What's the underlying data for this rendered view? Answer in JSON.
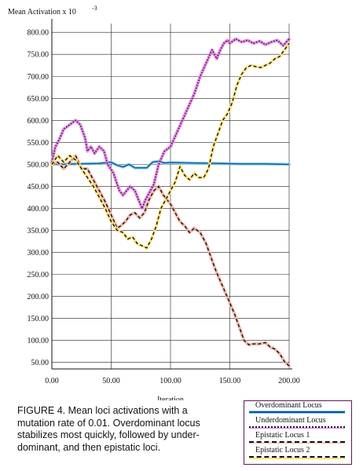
{
  "chart_data": {
    "type": "line",
    "ylabel": "Mean Activation x 10",
    "ylabel_exp": "-3",
    "xlabel": "Iteration",
    "xlim": [
      0,
      200
    ],
    "ylim": [
      35,
      820
    ],
    "x_ticks": [
      "0.00",
      "50.00",
      "100.00",
      "150.00",
      "200.00"
    ],
    "y_ticks": [
      "50.00",
      "100.00",
      "150.00",
      "200.00",
      "250.00",
      "300.00",
      "350.00",
      "400.00",
      "450.00",
      "500.00",
      "550.00",
      "600.00",
      "650.00",
      "700.00",
      "750.00",
      "800.00"
    ],
    "grid": true,
    "legend_position": "bottom-right",
    "series": [
      {
        "name": "Overdominant Locus",
        "color": "#1a4a9a",
        "highlight": "#7fd3e8",
        "dash": "solid",
        "points": [
          [
            0,
            500
          ],
          [
            40,
            502
          ],
          [
            50,
            505
          ],
          [
            55,
            498
          ],
          [
            60,
            494
          ],
          [
            65,
            500
          ],
          [
            70,
            492
          ],
          [
            80,
            492
          ],
          [
            85,
            505
          ],
          [
            90,
            507
          ],
          [
            95,
            503
          ],
          [
            100,
            504
          ],
          [
            120,
            503
          ],
          [
            140,
            502
          ],
          [
            160,
            501
          ],
          [
            180,
            501
          ],
          [
            200,
            500
          ]
        ]
      },
      {
        "name": "Underdominant Locus",
        "color": "#2a0a3a",
        "highlight": "#e07ae0",
        "dash": "dotted",
        "points": [
          [
            0,
            505
          ],
          [
            3,
            540
          ],
          [
            6,
            555
          ],
          [
            10,
            580
          ],
          [
            15,
            590
          ],
          [
            20,
            600
          ],
          [
            24,
            590
          ],
          [
            28,
            560
          ],
          [
            30,
            530
          ],
          [
            33,
            540
          ],
          [
            36,
            525
          ],
          [
            40,
            540
          ],
          [
            44,
            530
          ],
          [
            47,
            500
          ],
          [
            52,
            480
          ],
          [
            55,
            455
          ],
          [
            57,
            440
          ],
          [
            60,
            430
          ],
          [
            63,
            440
          ],
          [
            66,
            450
          ],
          [
            70,
            440
          ],
          [
            73,
            420
          ],
          [
            76,
            400
          ],
          [
            79,
            420
          ],
          [
            82,
            435
          ],
          [
            86,
            455
          ],
          [
            90,
            500
          ],
          [
            95,
            530
          ],
          [
            100,
            540
          ],
          [
            105,
            570
          ],
          [
            110,
            600
          ],
          [
            115,
            630
          ],
          [
            120,
            660
          ],
          [
            125,
            700
          ],
          [
            130,
            730
          ],
          [
            135,
            760
          ],
          [
            139,
            740
          ],
          [
            142,
            760
          ],
          [
            145,
            775
          ],
          [
            148,
            782
          ],
          [
            150,
            775
          ],
          [
            155,
            785
          ],
          [
            160,
            778
          ],
          [
            165,
            782
          ],
          [
            170,
            775
          ],
          [
            175,
            780
          ],
          [
            180,
            772
          ],
          [
            185,
            778
          ],
          [
            190,
            782
          ],
          [
            195,
            770
          ],
          [
            200,
            785
          ]
        ]
      },
      {
        "name": "Epistatic Locus 1",
        "color": "#111111",
        "highlight": "#f0b0a0",
        "dash": "dashed",
        "points": [
          [
            0,
            500
          ],
          [
            5,
            505
          ],
          [
            10,
            490
          ],
          [
            15,
            505
          ],
          [
            20,
            520
          ],
          [
            25,
            490
          ],
          [
            30,
            490
          ],
          [
            35,
            465
          ],
          [
            40,
            440
          ],
          [
            45,
            415
          ],
          [
            50,
            385
          ],
          [
            55,
            355
          ],
          [
            58,
            360
          ],
          [
            62,
            370
          ],
          [
            66,
            385
          ],
          [
            70,
            390
          ],
          [
            74,
            378
          ],
          [
            78,
            390
          ],
          [
            82,
            420
          ],
          [
            86,
            440
          ],
          [
            90,
            450
          ],
          [
            94,
            430
          ],
          [
            100,
            410
          ],
          [
            104,
            390
          ],
          [
            108,
            370
          ],
          [
            112,
            360
          ],
          [
            116,
            345
          ],
          [
            120,
            355
          ],
          [
            125,
            345
          ],
          [
            130,
            320
          ],
          [
            134,
            290
          ],
          [
            138,
            260
          ],
          [
            142,
            235
          ],
          [
            146,
            210
          ],
          [
            150,
            185
          ],
          [
            154,
            160
          ],
          [
            158,
            130
          ],
          [
            162,
            100
          ],
          [
            166,
            90
          ],
          [
            170,
            92
          ],
          [
            175,
            92
          ],
          [
            180,
            95
          ],
          [
            184,
            85
          ],
          [
            188,
            80
          ],
          [
            192,
            70
          ],
          [
            196,
            52
          ],
          [
            200,
            42
          ]
        ]
      },
      {
        "name": "Epistatic Locus 2",
        "color": "#111111",
        "highlight": "#ffe27a",
        "dash": "dashed",
        "points": [
          [
            0,
            500
          ],
          [
            5,
            520
          ],
          [
            10,
            505
          ],
          [
            15,
            520
          ],
          [
            20,
            510
          ],
          [
            25,
            490
          ],
          [
            30,
            470
          ],
          [
            35,
            450
          ],
          [
            40,
            425
          ],
          [
            45,
            400
          ],
          [
            50,
            370
          ],
          [
            55,
            350
          ],
          [
            60,
            345
          ],
          [
            64,
            330
          ],
          [
            68,
            335
          ],
          [
            72,
            320
          ],
          [
            76,
            315
          ],
          [
            80,
            310
          ],
          [
            84,
            330
          ],
          [
            88,
            360
          ],
          [
            92,
            400
          ],
          [
            96,
            420
          ],
          [
            100,
            440
          ],
          [
            104,
            460
          ],
          [
            108,
            495
          ],
          [
            112,
            475
          ],
          [
            116,
            465
          ],
          [
            120,
            480
          ],
          [
            124,
            470
          ],
          [
            128,
            470
          ],
          [
            132,
            490
          ],
          [
            136,
            540
          ],
          [
            140,
            570
          ],
          [
            144,
            600
          ],
          [
            148,
            615
          ],
          [
            152,
            640
          ],
          [
            156,
            680
          ],
          [
            160,
            705
          ],
          [
            164,
            720
          ],
          [
            168,
            725
          ],
          [
            172,
            722
          ],
          [
            176,
            720
          ],
          [
            180,
            725
          ],
          [
            184,
            730
          ],
          [
            188,
            740
          ],
          [
            192,
            745
          ],
          [
            196,
            760
          ],
          [
            200,
            775
          ]
        ]
      }
    ]
  },
  "caption": {
    "line1": "FIGURE 4. Mean loci activations with a",
    "line2": "mutation rate of 0.01.  Overdominant locus",
    "line3": "stabilizes most quickly, followed by under-",
    "line4": "dominant, and then epistatic loci."
  }
}
